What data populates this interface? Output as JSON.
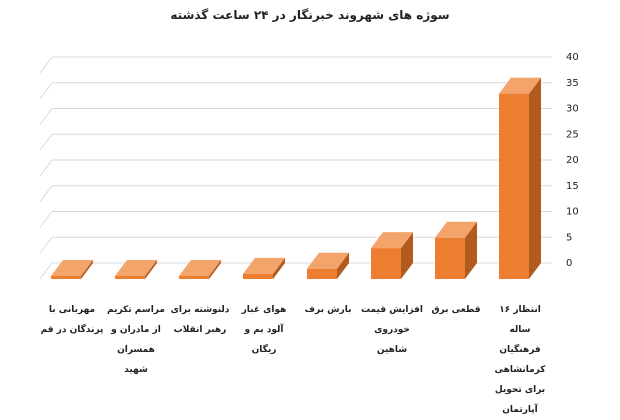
{
  "chart_data": {
    "type": "bar3d",
    "title": "سوژه های شهروند خبرنگار در ۲۴ ساعت گذشته",
    "categories": [
      "انتظار ۱۶ ساله فرهنگیان کرمانشاهی برای تحویل آپارتمان",
      "قطعی برق",
      "افزایش قیمت خودروی شاهین",
      "بارش برف",
      "هوای غبار آلود بم و ریگان",
      "دلنوشته برای رهبر انقلاب",
      "مراسم تکریم از مادران و همسران شهید",
      "مهربانی با پرندگان در قم"
    ],
    "values": [
      36,
      8,
      6,
      2,
      1,
      0,
      0,
      0
    ],
    "color": "#ed7d31",
    "ylim": [
      0,
      40
    ],
    "yticks": [
      0,
      5,
      10,
      15,
      20,
      25,
      30,
      35,
      40
    ],
    "grid": true,
    "direction": "rtl"
  }
}
